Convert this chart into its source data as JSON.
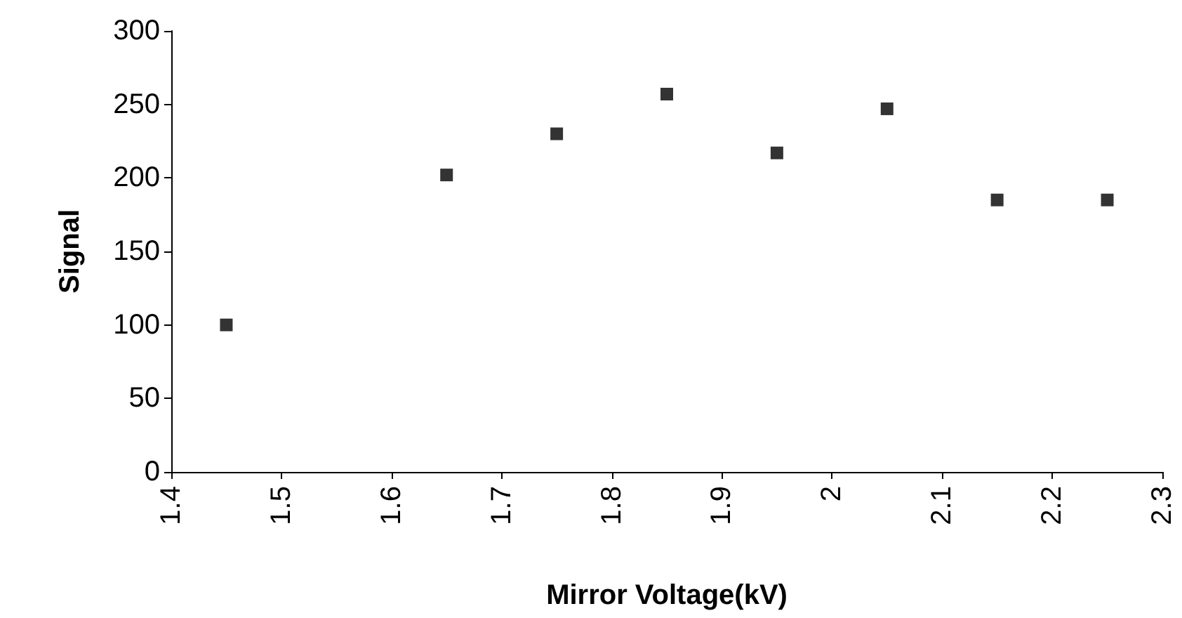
{
  "chart_data": {
    "type": "scatter",
    "xlabel": "Mirror Voltage(kV)",
    "ylabel": "Signal",
    "series": [
      {
        "color": "#000000",
        "x": [
          1.45,
          1.65,
          1.75,
          1.85,
          1.95,
          2.05,
          2.15,
          2.25
        ],
        "values": [
          100,
          202,
          230,
          257,
          217,
          247,
          185,
          185
        ]
      }
    ],
    "xlim": [
      1.4,
      2.3
    ],
    "xticks": [
      1.4,
      1.5,
      1.6,
      1.7,
      1.8,
      1.9,
      2,
      2.1,
      2.2,
      2.3
    ],
    "ylim": [
      0,
      300
    ],
    "yticks": [
      0,
      50,
      100,
      150,
      200,
      250,
      300
    ],
    "grid": false,
    "marker": "square"
  }
}
